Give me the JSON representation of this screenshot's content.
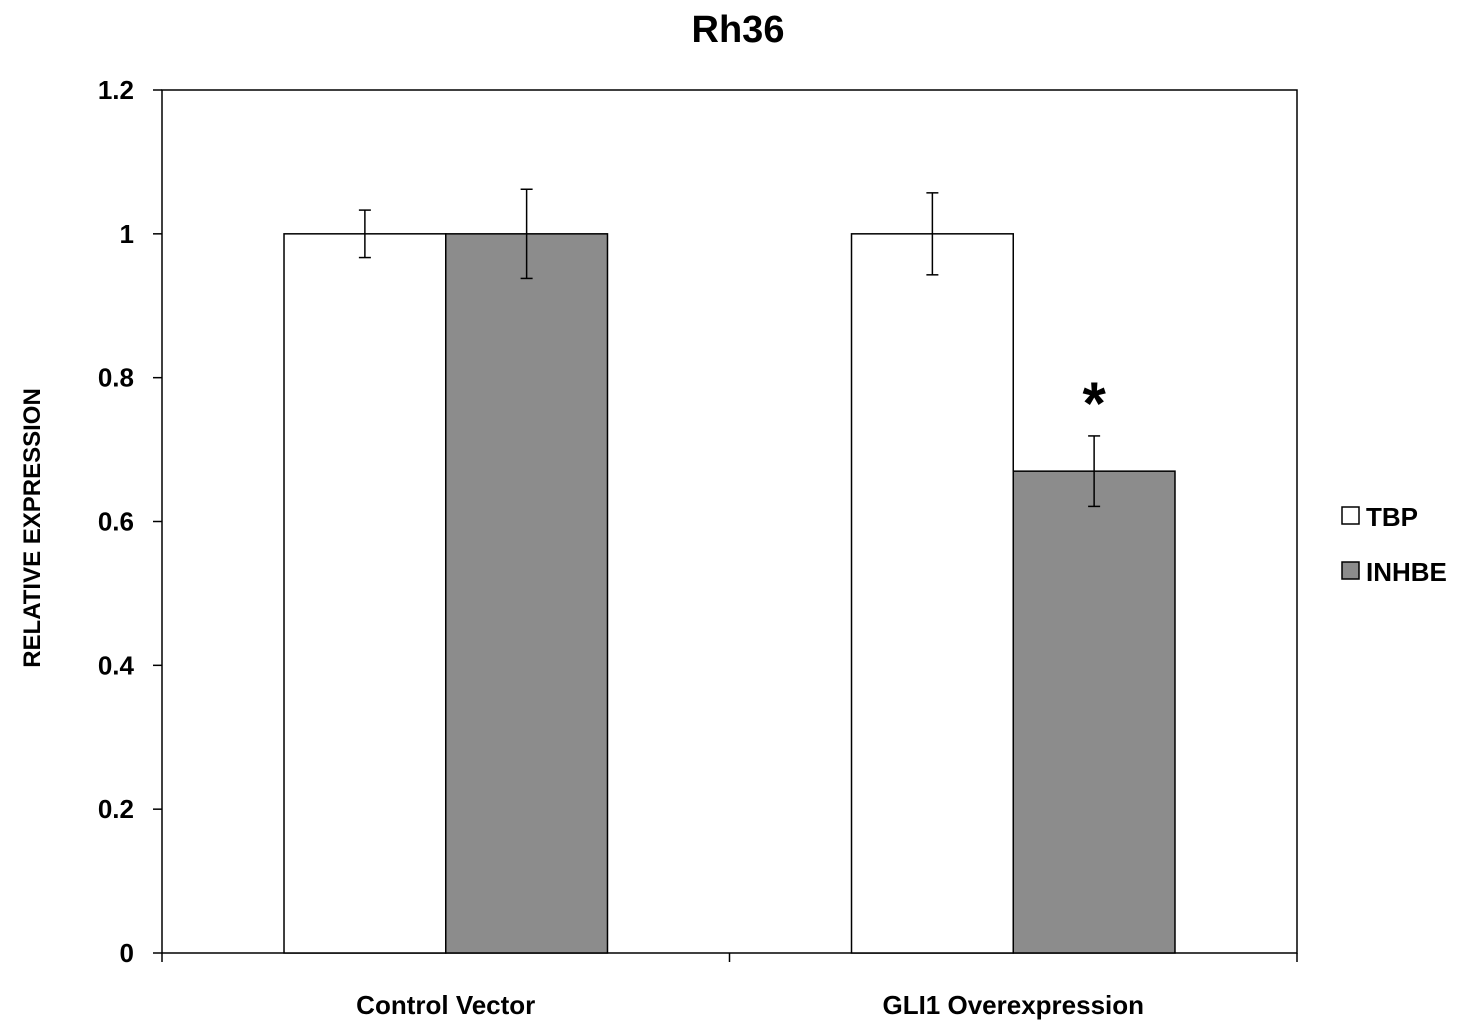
{
  "chart_data": {
    "type": "bar",
    "title": "Rh36",
    "xlabel": "",
    "ylabel": "RELATIVE EXPRESSION",
    "ylim": [
      0,
      1.2
    ],
    "yticks": [
      "0",
      "0.2",
      "0.4",
      "0.6",
      "0.8",
      "1",
      "1.2"
    ],
    "categories": [
      "Control Vector",
      "GLI1 Overexpression"
    ],
    "series": [
      {
        "name": "TBP",
        "color": "#ffffff",
        "values": [
          1.0,
          1.0
        ],
        "errors": [
          0.033,
          0.057
        ]
      },
      {
        "name": "INHBE",
        "color": "#8c8c8c",
        "values": [
          1.0,
          0.67
        ],
        "errors": [
          0.062,
          0.049
        ]
      }
    ],
    "annotations": [
      {
        "text": "*",
        "category": 1,
        "series": 1
      }
    ],
    "grid": false,
    "legend_position": "right"
  }
}
